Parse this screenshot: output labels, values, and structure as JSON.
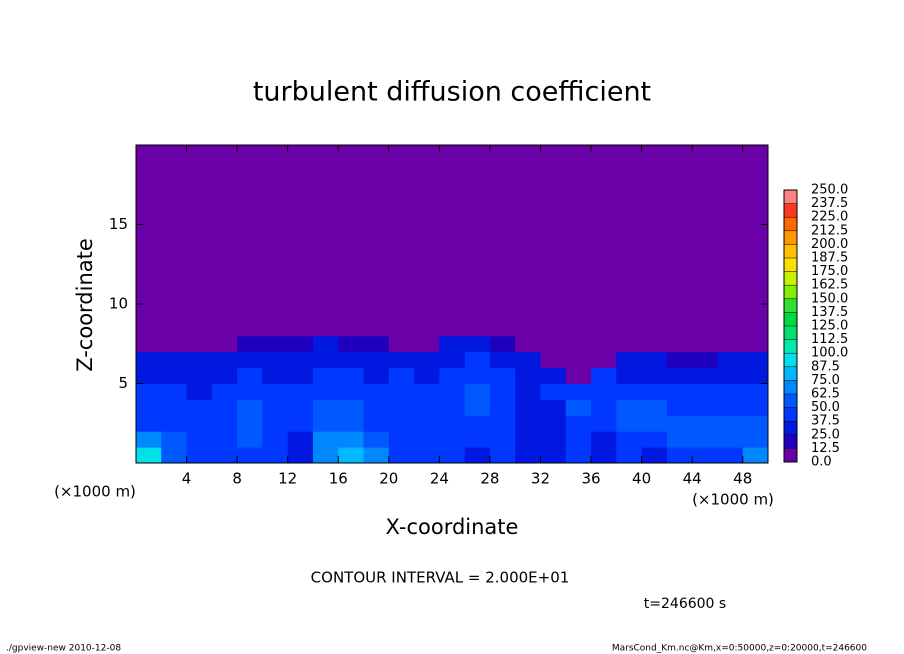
{
  "chart_data": {
    "type": "heatmap",
    "title": "turbulent diffusion coefficient",
    "x_label": "X-coordinate",
    "y_label": "Z-coordinate",
    "x_unit": "(×1000 m)",
    "y_unit": "(×1000 m)",
    "xlim": [
      0,
      50
    ],
    "ylim": [
      0,
      20
    ],
    "xticks": [
      4,
      8,
      12,
      16,
      20,
      24,
      28,
      32,
      36,
      40,
      44,
      48
    ],
    "yticks": [
      5,
      10,
      15
    ],
    "x": [
      1,
      3,
      5,
      7,
      9,
      11,
      13,
      15,
      17,
      19,
      21,
      23,
      25,
      27,
      29,
      31,
      33,
      35,
      37,
      39,
      41,
      43,
      45,
      47,
      49
    ],
    "y": [
      0.5,
      1.5,
      2.5,
      3.5,
      4.5,
      5.5,
      6.5,
      7.5,
      8.5
    ],
    "values": [
      [
        90,
        60,
        40,
        40,
        40,
        45,
        30,
        65,
        75,
        70,
        40,
        45,
        40,
        35,
        40,
        30,
        30,
        45,
        35,
        40,
        35,
        40,
        45,
        40,
        70
      ],
      [
        70,
        50,
        40,
        45,
        50,
        45,
        35,
        70,
        70,
        55,
        40,
        45,
        40,
        40,
        40,
        30,
        30,
        45,
        35,
        40,
        45,
        50,
        50,
        55,
        60
      ],
      [
        45,
        45,
        40,
        45,
        55,
        45,
        40,
        60,
        60,
        45,
        40,
        45,
        45,
        45,
        40,
        30,
        35,
        45,
        40,
        50,
        55,
        55,
        50,
        55,
        55
      ],
      [
        40,
        40,
        40,
        40,
        50,
        40,
        45,
        55,
        50,
        40,
        45,
        45,
        45,
        50,
        40,
        35,
        35,
        50,
        45,
        50,
        50,
        45,
        45,
        45,
        45
      ],
      [
        40,
        40,
        35,
        40,
        45,
        40,
        45,
        45,
        45,
        40,
        45,
        45,
        45,
        50,
        40,
        35,
        40,
        45,
        40,
        45,
        40,
        40,
        40,
        40,
        40
      ],
      [
        35,
        35,
        35,
        35,
        40,
        35,
        35,
        40,
        40,
        35,
        40,
        35,
        40,
        45,
        40,
        35,
        35,
        5,
        40,
        35,
        35,
        35,
        35,
        35,
        35
      ],
      [
        30,
        30,
        30,
        30,
        35,
        30,
        30,
        35,
        35,
        30,
        30,
        30,
        35,
        40,
        35,
        30,
        5,
        5,
        5,
        25,
        25,
        20,
        20,
        30,
        30
      ],
      [
        5,
        5,
        5,
        5,
        15,
        15,
        15,
        25,
        20,
        15,
        5,
        5,
        25,
        30,
        20,
        5,
        5,
        5,
        5,
        5,
        5,
        5,
        5,
        5,
        5
      ],
      [
        5,
        5,
        5,
        5,
        5,
        5,
        5,
        5,
        5,
        5,
        5,
        5,
        5,
        10,
        5,
        5,
        5,
        5,
        5,
        5,
        5,
        5,
        5,
        5,
        5
      ]
    ],
    "levels": [
      {
        "value": 0,
        "label": "0.0"
      },
      {
        "value": 12.5,
        "label": "12.5"
      },
      {
        "value": 25,
        "label": "25.0"
      },
      {
        "value": 37.5,
        "label": "37.5"
      },
      {
        "value": 50,
        "label": "50.0"
      },
      {
        "value": 62.5,
        "label": "62.5"
      },
      {
        "value": 75,
        "label": "75.0"
      },
      {
        "value": 87.5,
        "label": "87.5"
      },
      {
        "value": 100,
        "label": "100.0"
      },
      {
        "value": 112.5,
        "label": "112.5"
      },
      {
        "value": 125,
        "label": "125.0"
      },
      {
        "value": 137.5,
        "label": "137.5"
      },
      {
        "value": 150,
        "label": "150.0"
      },
      {
        "value": 162.5,
        "label": "162.5"
      },
      {
        "value": 175,
        "label": "175.0"
      },
      {
        "value": 187.5,
        "label": "187.5"
      },
      {
        "value": 200,
        "label": "200.0"
      },
      {
        "value": 212.5,
        "label": "212.5"
      },
      {
        "value": 225,
        "label": "225.0"
      },
      {
        "value": 237.5,
        "label": "237.5"
      },
      {
        "value": 250,
        "label": "250.0"
      }
    ],
    "colors": [
      "#6a00a8",
      "#2000c0",
      "#0018e0",
      "#0038ff",
      "#0058ff",
      "#0088ff",
      "#00b8ff",
      "#00e0e8",
      "#00e8b0",
      "#00e070",
      "#00d840",
      "#30e030",
      "#80f000",
      "#c8f000",
      "#f8e000",
      "#ffc000",
      "#ff9800",
      "#ff6800",
      "#ff3820",
      "#ff8080"
    ],
    "annotation": "CONTOUR INTERVAL = 2.000E+01",
    "time_label": "t=246600 s",
    "footer_left": "./gpview-new  2010-12-08",
    "footer_right": "MarsCond_Km.nc@Km,x=0:50000,z=0:20000,t=246600"
  }
}
